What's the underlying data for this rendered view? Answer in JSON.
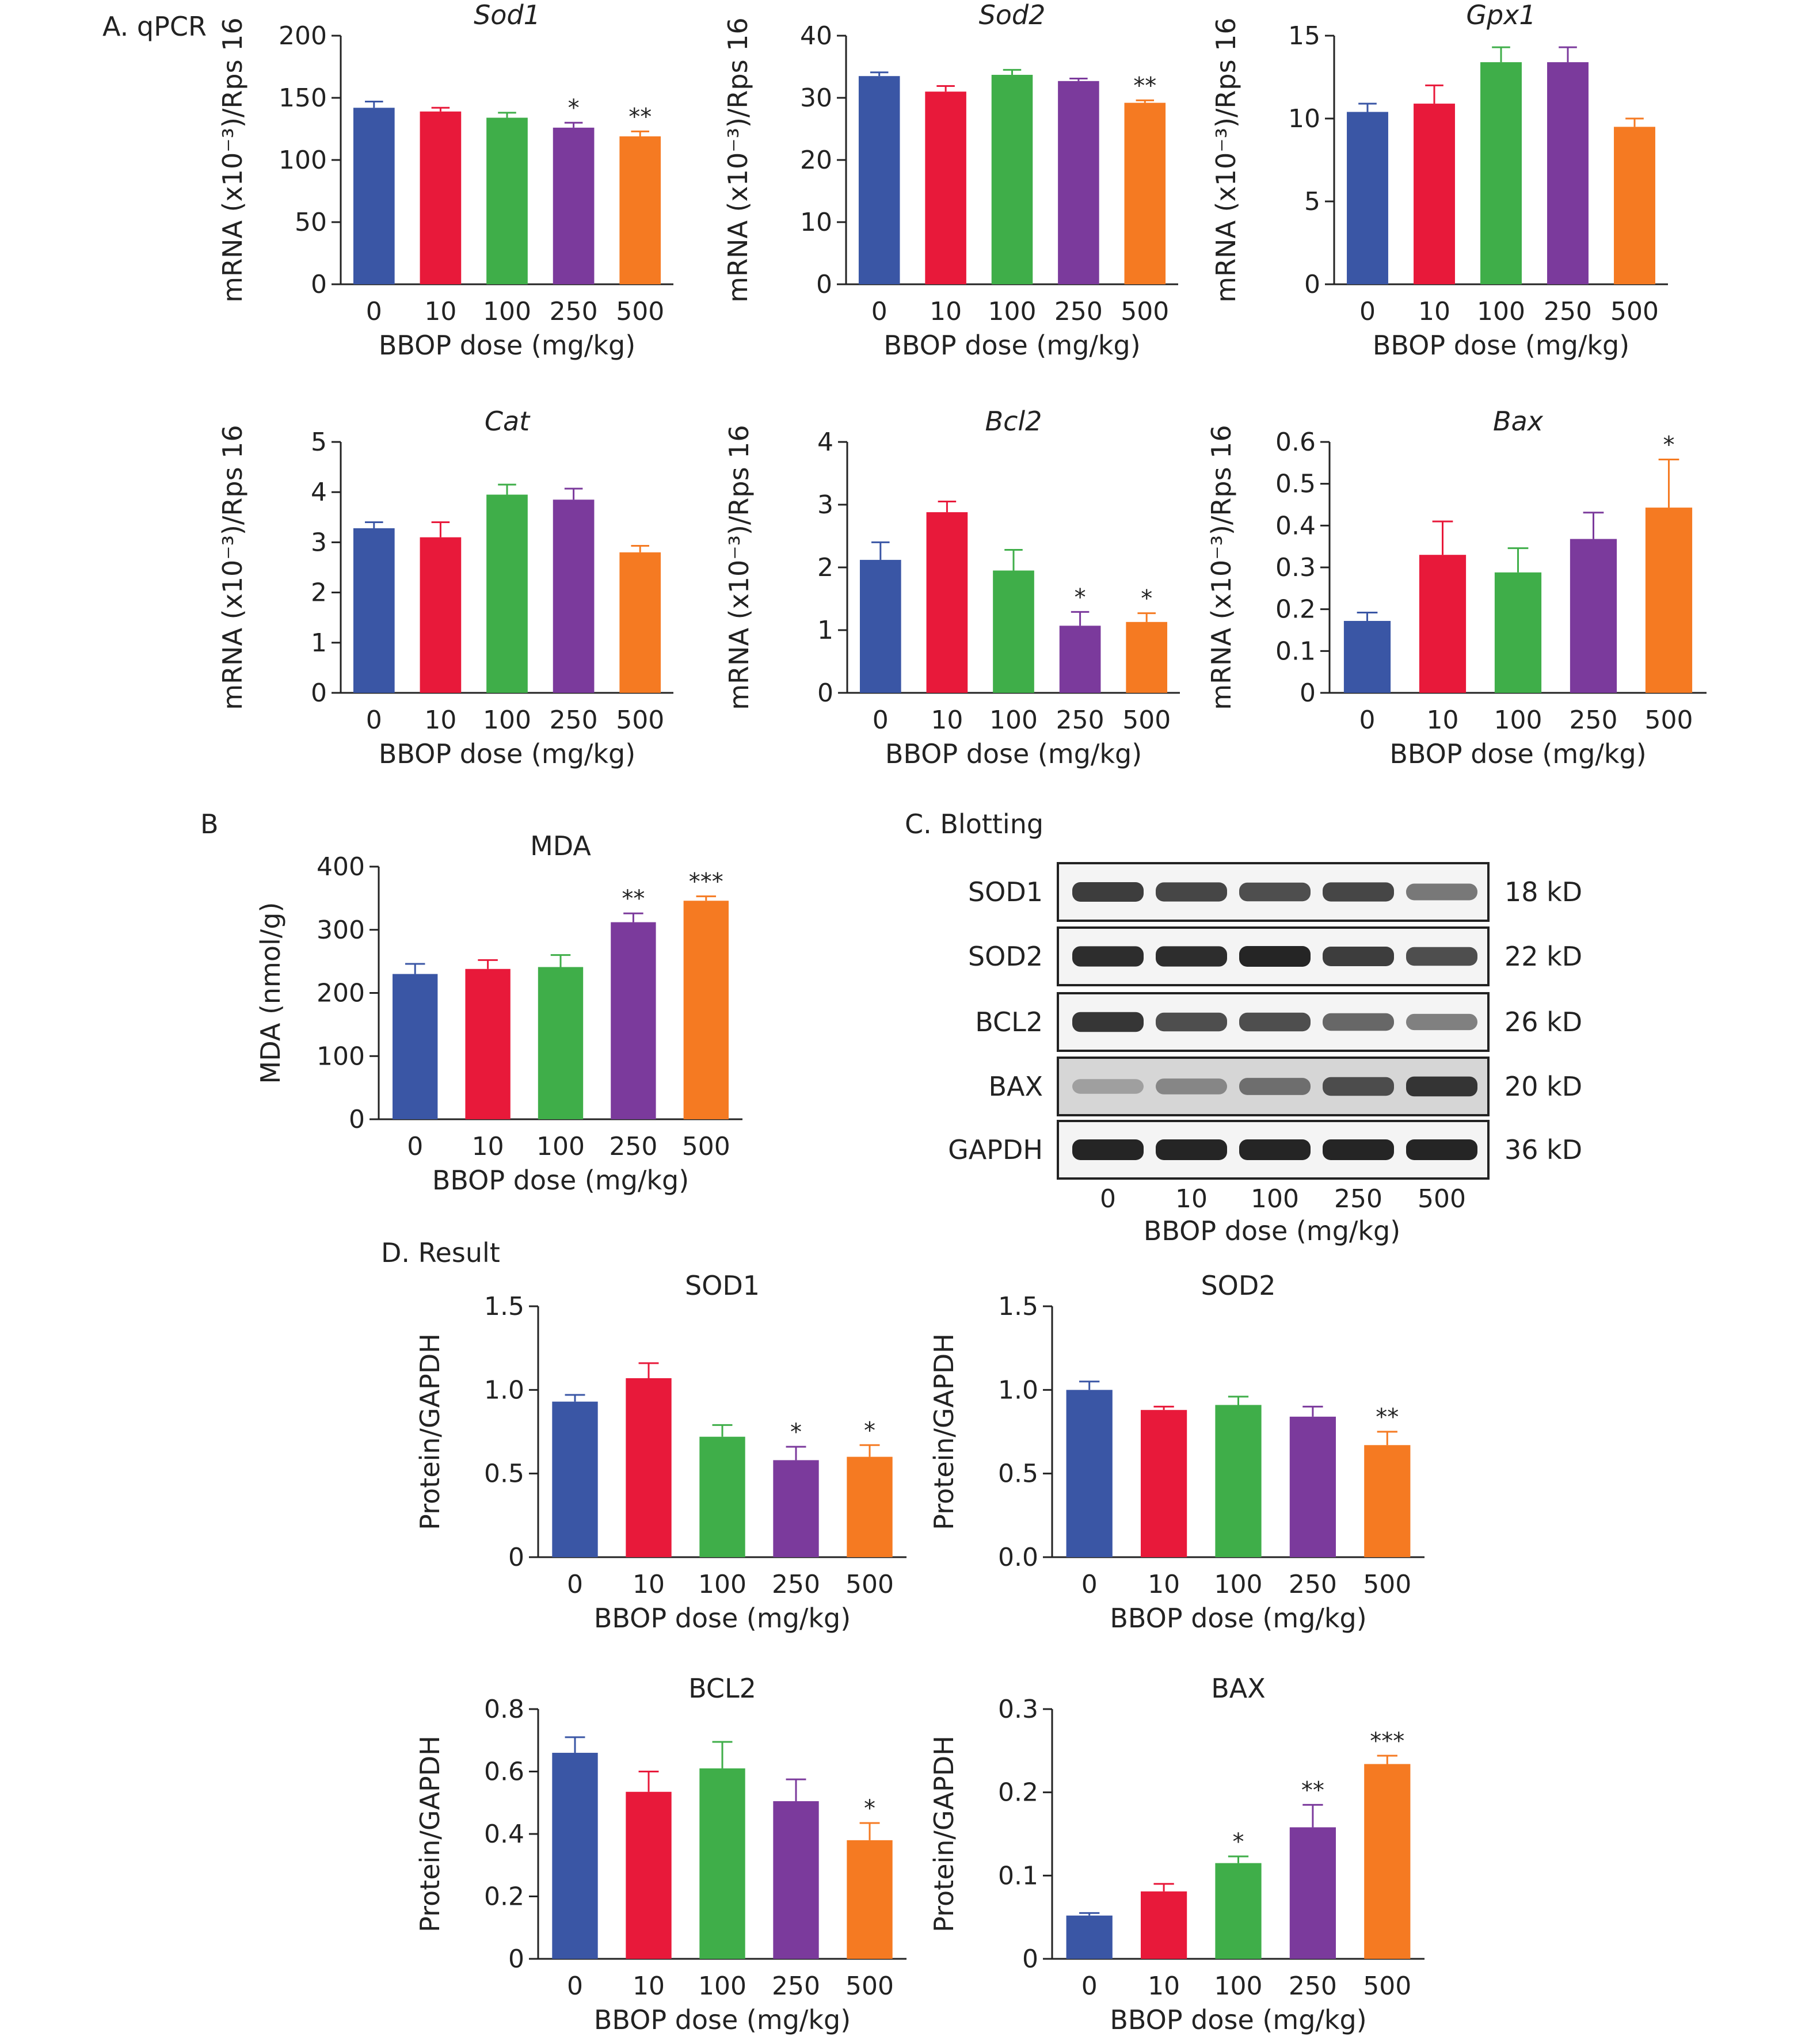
{
  "section_labels": {
    "a": "A. qPCR",
    "b": "B",
    "c": "C. Blotting",
    "d": "D. Result"
  },
  "series_colors": [
    "#3a56a5",
    "#e8193a",
    "#3fae49",
    "#7b3a9c",
    "#f57a22"
  ],
  "chart_data": [
    {
      "id": "sod1-mrna",
      "type": "bar",
      "title": "Sod1",
      "italic": true,
      "categories": [
        "0",
        "10",
        "100",
        "250",
        "500"
      ],
      "values": [
        142,
        139,
        134,
        126,
        119
      ],
      "errors": [
        5,
        3,
        4,
        4,
        4
      ],
      "significance": [
        "",
        "",
        "",
        "*",
        "**"
      ],
      "xlabel": "BBOP dose (mg/kg)",
      "ylabel": "mRNA (x10⁻³)/Rps 16",
      "ylim": [
        0,
        200
      ],
      "yticks": [
        "0",
        "50",
        "100",
        "150",
        "200"
      ],
      "grid": false
    },
    {
      "id": "sod2-mrna",
      "type": "bar",
      "title": "Sod2",
      "italic": true,
      "categories": [
        "0",
        "10",
        "100",
        "250",
        "500"
      ],
      "values": [
        33.5,
        31,
        33.7,
        32.7,
        29.2
      ],
      "errors": [
        0.6,
        0.9,
        0.8,
        0.4,
        0.4
      ],
      "significance": [
        "",
        "",
        "",
        "",
        "**"
      ],
      "xlabel": "BBOP dose (mg/kg)",
      "ylabel": "mRNA (x10⁻³)/Rps 16",
      "ylim": [
        0,
        40
      ],
      "yticks": [
        "0",
        "10",
        "20",
        "30",
        "40"
      ],
      "grid": false
    },
    {
      "id": "gpx1-mrna",
      "type": "bar",
      "title": "Gpx1",
      "italic": true,
      "categories": [
        "0",
        "10",
        "100",
        "250",
        "500"
      ],
      "values": [
        10.4,
        10.9,
        13.4,
        13.4,
        9.5
      ],
      "errors": [
        0.5,
        1.1,
        0.9,
        0.9,
        0.5
      ],
      "significance": [
        "",
        "",
        "",
        "",
        ""
      ],
      "xlabel": "BBOP dose (mg/kg)",
      "ylabel": "mRNA (x10⁻³)/Rps 16",
      "ylim": [
        0,
        15
      ],
      "yticks": [
        "0",
        "5",
        "10",
        "15"
      ],
      "grid": false
    },
    {
      "id": "cat-mrna",
      "type": "bar",
      "title": "Cat",
      "italic": true,
      "categories": [
        "0",
        "10",
        "100",
        "250",
        "500"
      ],
      "values": [
        3.28,
        3.1,
        3.95,
        3.85,
        2.8
      ],
      "errors": [
        0.12,
        0.3,
        0.2,
        0.22,
        0.13
      ],
      "significance": [
        "",
        "",
        "",
        "",
        ""
      ],
      "xlabel": "BBOP dose (mg/kg)",
      "ylabel": "mRNA (x10⁻³)/Rps 16",
      "ylim": [
        0,
        5
      ],
      "yticks": [
        "0",
        "1",
        "2",
        "3",
        "4",
        "5"
      ],
      "grid": false
    },
    {
      "id": "bcl2-mrna",
      "type": "bar",
      "title": "Bcl2",
      "italic": true,
      "categories": [
        "0",
        "10",
        "100",
        "250",
        "500"
      ],
      "values": [
        2.12,
        2.88,
        1.95,
        1.07,
        1.13
      ],
      "errors": [
        0.28,
        0.17,
        0.33,
        0.22,
        0.14
      ],
      "significance": [
        "",
        "",
        "",
        "*",
        "*"
      ],
      "xlabel": "BBOP dose (mg/kg)",
      "ylabel": "mRNA (x10⁻³)/Rps 16",
      "ylim": [
        0,
        4
      ],
      "yticks": [
        "0",
        "1",
        "2",
        "3",
        "4"
      ],
      "grid": false
    },
    {
      "id": "bax-mrna",
      "type": "bar",
      "title": "Bax",
      "italic": true,
      "categories": [
        "0",
        "10",
        "100",
        "250",
        "500"
      ],
      "values": [
        0.172,
        0.33,
        0.288,
        0.368,
        0.443
      ],
      "errors": [
        0.02,
        0.08,
        0.058,
        0.063,
        0.115
      ],
      "significance": [
        "",
        "",
        "",
        "",
        "*"
      ],
      "xlabel": "BBOP dose (mg/kg)",
      "ylabel": "mRNA (x10⁻³)/Rps 16",
      "ylim": [
        0,
        0.6
      ],
      "yticks": [
        "0",
        "0.1",
        "0.2",
        "0.3",
        "0.4",
        "0.5",
        "0.6"
      ],
      "grid": false
    },
    {
      "id": "mda",
      "type": "bar",
      "title": "MDA",
      "italic": false,
      "categories": [
        "0",
        "10",
        "100",
        "250",
        "500"
      ],
      "values": [
        230,
        238,
        241,
        312,
        346
      ],
      "errors": [
        16,
        14,
        19,
        14,
        7
      ],
      "significance": [
        "",
        "",
        "",
        "**",
        "***"
      ],
      "xlabel": "BBOP dose (mg/kg)",
      "ylabel": "MDA (nmol/g)",
      "ylim": [
        0,
        400
      ],
      "yticks": [
        "0",
        "100",
        "200",
        "300",
        "400"
      ],
      "grid": false
    },
    {
      "id": "sod1-protein",
      "type": "bar",
      "title": "SOD1",
      "italic": false,
      "categories": [
        "0",
        "10",
        "100",
        "250",
        "500"
      ],
      "values": [
        0.93,
        1.07,
        0.72,
        0.58,
        0.6
      ],
      "errors": [
        0.04,
        0.09,
        0.07,
        0.08,
        0.07
      ],
      "significance": [
        "",
        "",
        "",
        "*",
        "*"
      ],
      "xlabel": "BBOP dose (mg/kg)",
      "ylabel": "Protein/GAPDH",
      "ylim": [
        0,
        1.5
      ],
      "yticks": [
        "0",
        "0.5",
        "1.0",
        "1.5"
      ],
      "grid": false
    },
    {
      "id": "sod2-protein",
      "type": "bar",
      "title": "SOD2",
      "italic": false,
      "categories": [
        "0",
        "10",
        "100",
        "250",
        "500"
      ],
      "values": [
        1.0,
        0.88,
        0.91,
        0.84,
        0.67
      ],
      "errors": [
        0.05,
        0.02,
        0.05,
        0.06,
        0.08
      ],
      "significance": [
        "",
        "",
        "",
        "",
        "**"
      ],
      "xlabel": "BBOP dose (mg/kg)",
      "ylabel": "Protein/GAPDH",
      "ylim": [
        0,
        1.5
      ],
      "yticks": [
        "0.0",
        "0.5",
        "1.0",
        "1.5"
      ],
      "grid": false
    },
    {
      "id": "bcl2-protein",
      "type": "bar",
      "title": "BCL2",
      "italic": false,
      "categories": [
        "0",
        "10",
        "100",
        "250",
        "500"
      ],
      "values": [
        0.66,
        0.535,
        0.61,
        0.505,
        0.38
      ],
      "errors": [
        0.05,
        0.065,
        0.085,
        0.07,
        0.055
      ],
      "significance": [
        "",
        "",
        "",
        "",
        "*"
      ],
      "xlabel": "BBOP dose (mg/kg)",
      "ylabel": "Protein/GAPDH",
      "ylim": [
        0,
        0.8
      ],
      "yticks": [
        "0",
        "0.2",
        "0.4",
        "0.6",
        "0.8"
      ],
      "grid": false
    },
    {
      "id": "bax-protein",
      "type": "bar",
      "title": "BAX",
      "italic": false,
      "categories": [
        "0",
        "10",
        "100",
        "250",
        "500"
      ],
      "values": [
        0.052,
        0.081,
        0.115,
        0.158,
        0.234
      ],
      "errors": [
        0.003,
        0.009,
        0.008,
        0.027,
        0.01
      ],
      "significance": [
        "",
        "",
        "*",
        "**",
        "***"
      ],
      "xlabel": "BBOP dose (mg/kg)",
      "ylabel": "Protein/GAPDH",
      "ylim": [
        0,
        0.3
      ],
      "yticks": [
        "0",
        "0.1",
        "0.2",
        "0.3"
      ],
      "grid": false
    }
  ],
  "blot": {
    "rows": [
      {
        "protein": "SOD1",
        "size": "18 kD",
        "intensity": [
          0.85,
          0.8,
          0.75,
          0.8,
          0.5
        ]
      },
      {
        "protein": "SOD2",
        "size": "22 kD",
        "intensity": [
          0.95,
          0.95,
          1.0,
          0.85,
          0.75
        ]
      },
      {
        "protein": "BCL2",
        "size": "26 kD",
        "intensity": [
          0.9,
          0.75,
          0.75,
          0.6,
          0.45
        ]
      },
      {
        "protein": "BAX",
        "size": "20 kD",
        "intensity": [
          0.25,
          0.4,
          0.55,
          0.75,
          0.9
        ]
      },
      {
        "protein": "GAPDH",
        "size": "36 kD",
        "intensity": [
          1.0,
          1.0,
          1.0,
          1.0,
          1.0
        ]
      }
    ],
    "categories": [
      "0",
      "10",
      "100",
      "250",
      "500"
    ],
    "xlabel": "BBOP dose (mg/kg)"
  }
}
